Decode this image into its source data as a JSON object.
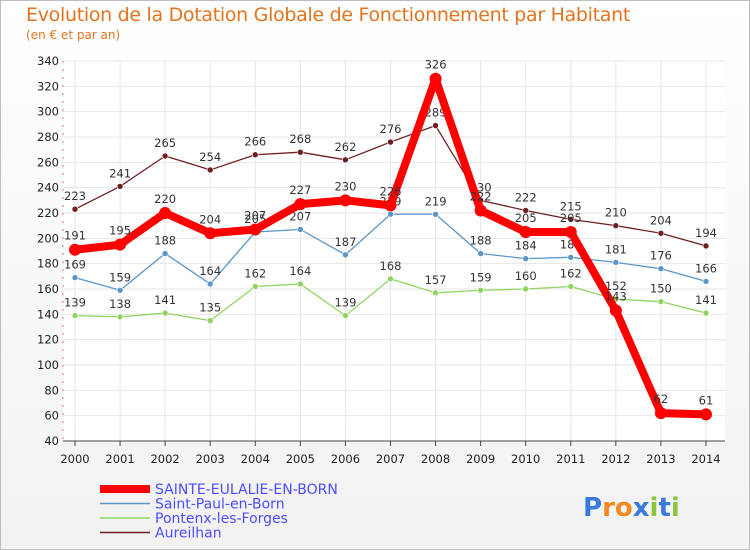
{
  "chart_data": {
    "type": "line",
    "title": "Evolution de la Dotation Globale de Fonctionnement par Habitant",
    "subtitle": "(en € et par an)",
    "xlabel": "",
    "ylabel": "",
    "ylim": [
      40,
      340
    ],
    "yticks": [
      40,
      60,
      80,
      100,
      120,
      140,
      160,
      180,
      200,
      220,
      240,
      260,
      280,
      300,
      320,
      340
    ],
    "categories": [
      "2000",
      "2001",
      "2002",
      "2003",
      "2004",
      "2005",
      "2006",
      "2007",
      "2008",
      "2009",
      "2010",
      "2011",
      "2012",
      "2013",
      "2014"
    ],
    "series": [
      {
        "name": "Aureilhan",
        "color": "#6e1f22",
        "values": [
          223,
          241,
          265,
          254,
          266,
          268,
          262,
          276,
          289,
          230,
          222,
          215,
          210,
          204,
          194
        ]
      },
      {
        "name": "Saint-Paul-en-Born",
        "color": "#5a96c8",
        "values": [
          169,
          159,
          188,
          164,
          205,
          207,
          187,
          219,
          219,
          188,
          184,
          185,
          181,
          176,
          166
        ]
      },
      {
        "name": "Pontenx-les-Forges",
        "color": "#90d464",
        "values": [
          139,
          138,
          141,
          135,
          162,
          164,
          139,
          168,
          157,
          159,
          160,
          162,
          152,
          150,
          141
        ]
      },
      {
        "name": "SAINTE-EULALIE-EN-BORN",
        "color": "#ff0000",
        "values": [
          191,
          195,
          220,
          204,
          207,
          227,
          230,
          226,
          326,
          222,
          205,
          205,
          143,
          62,
          61
        ]
      }
    ],
    "legend": [
      "SAINTE-EULALIE-EN-BORN",
      "Saint-Paul-en-Born",
      "Pontenx-les-Forges",
      "Aureilhan"
    ],
    "legend_position": "bottom-left",
    "watermark": "Proxiti"
  }
}
